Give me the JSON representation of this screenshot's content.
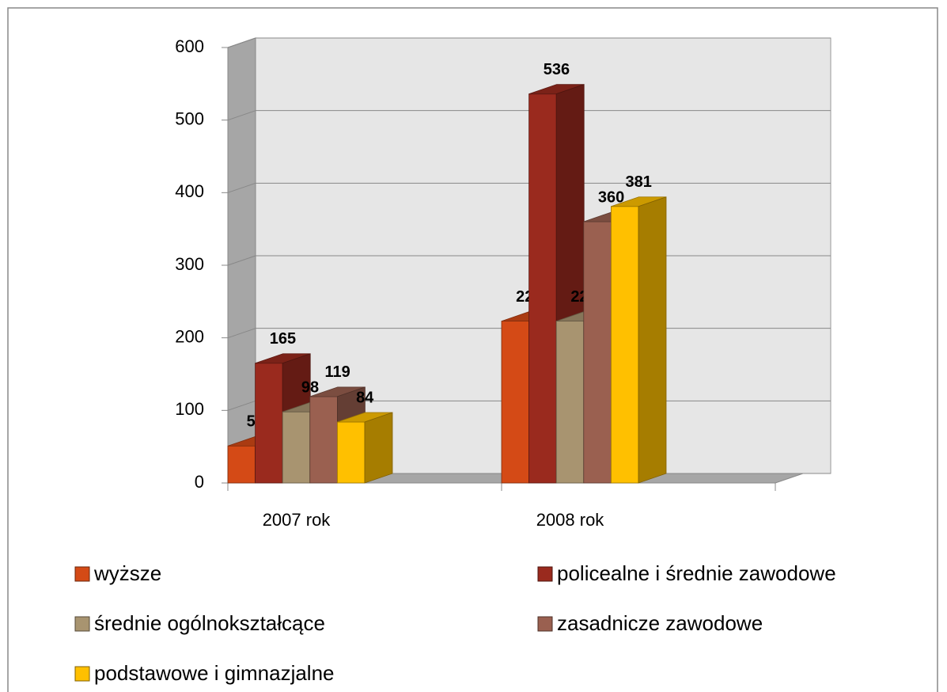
{
  "chart_data": {
    "type": "bar3d",
    "categories": [
      "2007 rok",
      "2008 rok"
    ],
    "series": [
      {
        "name": "wyższe",
        "color": "#d44a16",
        "values": [
          51,
          223
        ]
      },
      {
        "name": "policealne i średnie zawodowe",
        "color": "#9a2a1e",
        "values": [
          165,
          536
        ]
      },
      {
        "name": "średnie ogólnokształcące",
        "color": "#a89470",
        "values": [
          98,
          223
        ]
      },
      {
        "name": "zasadnicze zawodowe",
        "color": "#9a6050",
        "values": [
          119,
          360
        ]
      },
      {
        "name": "podstawowe i gimnazjalne",
        "color": "#ffc000",
        "values": [
          84,
          381
        ]
      }
    ],
    "ylim": [
      0,
      600
    ],
    "yticks": [
      0,
      100,
      200,
      300,
      400,
      500,
      600
    ],
    "grid": true
  }
}
